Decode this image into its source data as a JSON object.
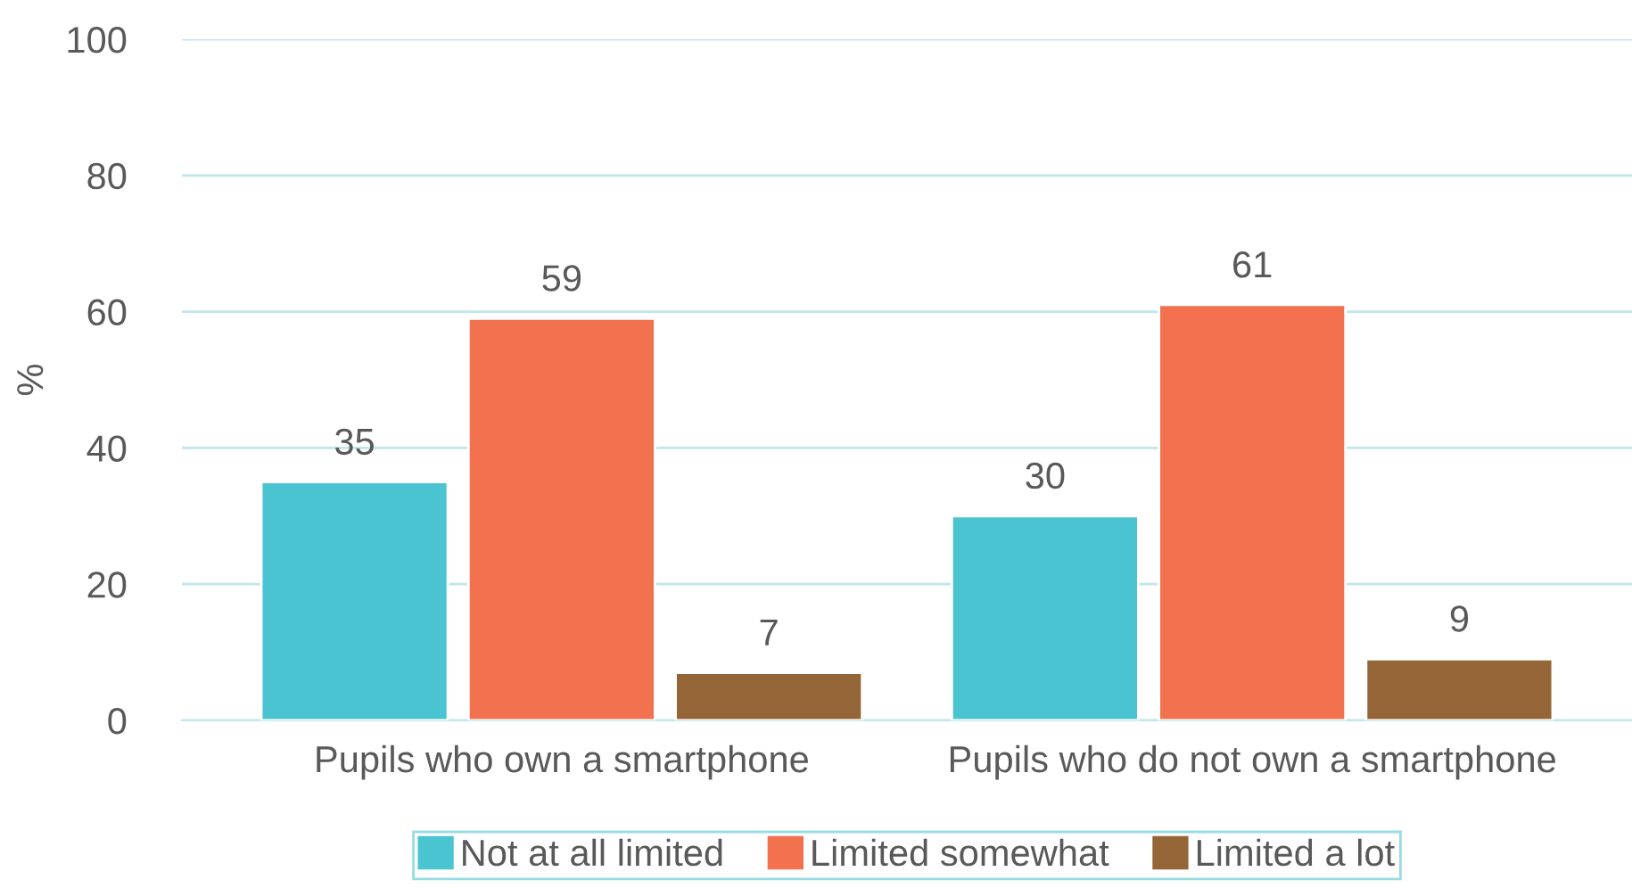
{
  "chart_data": {
    "type": "bar",
    "ylabel": "%",
    "categories": [
      "Pupils who own a smartphone",
      "Pupils who do not own a smartphone"
    ],
    "series": [
      {
        "name": "Not at all limited",
        "color": "#4bc4d1",
        "values": [
          35,
          30
        ]
      },
      {
        "name": "Limited somewhat",
        "color": "#f2714f",
        "values": [
          59,
          61
        ]
      },
      {
        "name": "Limited a lot",
        "color": "#946536",
        "values": [
          7,
          9
        ]
      }
    ],
    "ylim": [
      0,
      100
    ],
    "yticks": [
      0,
      20,
      40,
      60,
      80,
      100
    ],
    "grid": "y",
    "legend": "bottom",
    "data_labels": true
  }
}
